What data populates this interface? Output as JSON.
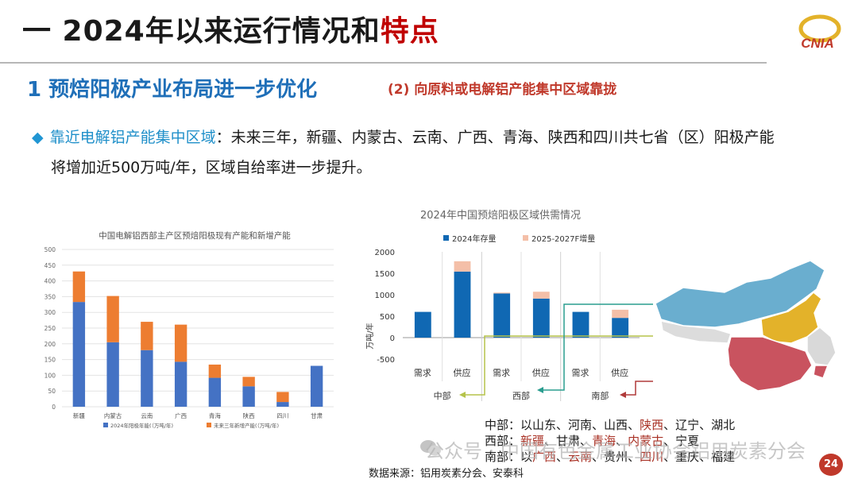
{
  "header": {
    "title_main": "一 2024年以来运行情况和",
    "title_accent": "特点",
    "logo_text": "CNIA",
    "subtitle_main": "1 预焙阳极产业布局进一步优化",
    "subtitle_side": "(2) 向原料或电解铝产能集中区域靠拢"
  },
  "bullet": {
    "highlight": "靠近电解铝产能集中区域",
    "line1_rest": "：未来三年，新疆、内蒙古、云南、广西、青海、陕西和四川共七省（区）阳极产能",
    "line2": "将增加近500万吨/年，区域自给率进一步提升。"
  },
  "colors": {
    "blue": "#4472c4",
    "orange": "#ed7d31",
    "supply_blue": "#1068b3",
    "increment_peach": "#f4bfa8",
    "title_red": "#c00000",
    "north_blue": "#6aaecf",
    "central_yellow": "#e3b22a",
    "south_red": "#c9535f",
    "arrow_green": "#b5c34a",
    "arrow_teal": "#2a9d8f",
    "arrow_red": "#b03a3a"
  },
  "chart_data": [
    {
      "type": "bar",
      "stacked": true,
      "title": "中国电解铝西部主产区预焙阳极现有产能和新增产能",
      "categories": [
        "新疆",
        "内蒙古",
        "云南",
        "广西",
        "青海",
        "陕西",
        "四川",
        "甘肃"
      ],
      "series": [
        {
          "name": "2024年阳极年能(（万吨/年)",
          "values": [
            333,
            205,
            180,
            143,
            92,
            65,
            15,
            130
          ]
        },
        {
          "name": "未来三年新增产能(（万吨/年)",
          "values": [
            97,
            147,
            90,
            118,
            42,
            30,
            32,
            0
          ]
        }
      ],
      "ylim": [
        0,
        500
      ],
      "yticks": [
        0,
        50,
        100,
        150,
        200,
        250,
        300,
        350,
        400,
        450,
        500
      ],
      "grid": true,
      "legend": "bottom"
    },
    {
      "type": "bar",
      "stacked": true,
      "title": "2024年中国预焙阳极区域供需情况",
      "categories": [
        "需求",
        "供应",
        "需求",
        "供应",
        "需求",
        "供应"
      ],
      "groups": [
        "中部",
        "西部",
        "南部"
      ],
      "series": [
        {
          "name": "2024年存量",
          "values": [
            600,
            1540,
            1030,
            910,
            600,
            460
          ]
        },
        {
          "name": "2025-2027F增量",
          "values": [
            0,
            240,
            20,
            160,
            0,
            190
          ]
        }
      ],
      "ylabel": "万吨/年",
      "ylim": [
        -500,
        2000
      ],
      "yticks": [
        -500,
        0,
        500,
        1000,
        1500,
        2000
      ],
      "grid": true,
      "legend": "top"
    }
  ],
  "regions": {
    "central_label": "中部：",
    "central": [
      {
        "t": "以山东",
        "red": false
      },
      {
        "t": "、河南",
        "red": false
      },
      {
        "t": "、山西",
        "red": false
      },
      {
        "t": "、",
        "red": false
      },
      {
        "t": "陕西",
        "red": true
      },
      {
        "t": "、辽宁",
        "red": false
      },
      {
        "t": "、湖北",
        "red": false
      }
    ],
    "west_label": "西部：",
    "west": [
      {
        "t": "新疆",
        "red": true
      },
      {
        "t": "、甘肃",
        "red": false
      },
      {
        "t": "、",
        "red": false
      },
      {
        "t": "青海",
        "red": true
      },
      {
        "t": "、",
        "red": false
      },
      {
        "t": "内蒙古",
        "red": true
      },
      {
        "t": "、宁夏",
        "red": false
      }
    ],
    "south_label": "南部：",
    "south": [
      {
        "t": "以",
        "red": false
      },
      {
        "t": "广西",
        "red": true
      },
      {
        "t": "、",
        "red": false
      },
      {
        "t": "云南",
        "red": true
      },
      {
        "t": "、贵州",
        "red": false
      },
      {
        "t": "、",
        "red": false
      },
      {
        "t": "四川",
        "red": true
      },
      {
        "t": "、重庆",
        "red": false
      },
      {
        "t": "、福建",
        "red": false
      }
    ]
  },
  "source": "数据来源：铝用炭素分会、安泰科",
  "watermark": "公众号 · 中国有色金属工业协会铝用炭素分会",
  "page_number": "24"
}
